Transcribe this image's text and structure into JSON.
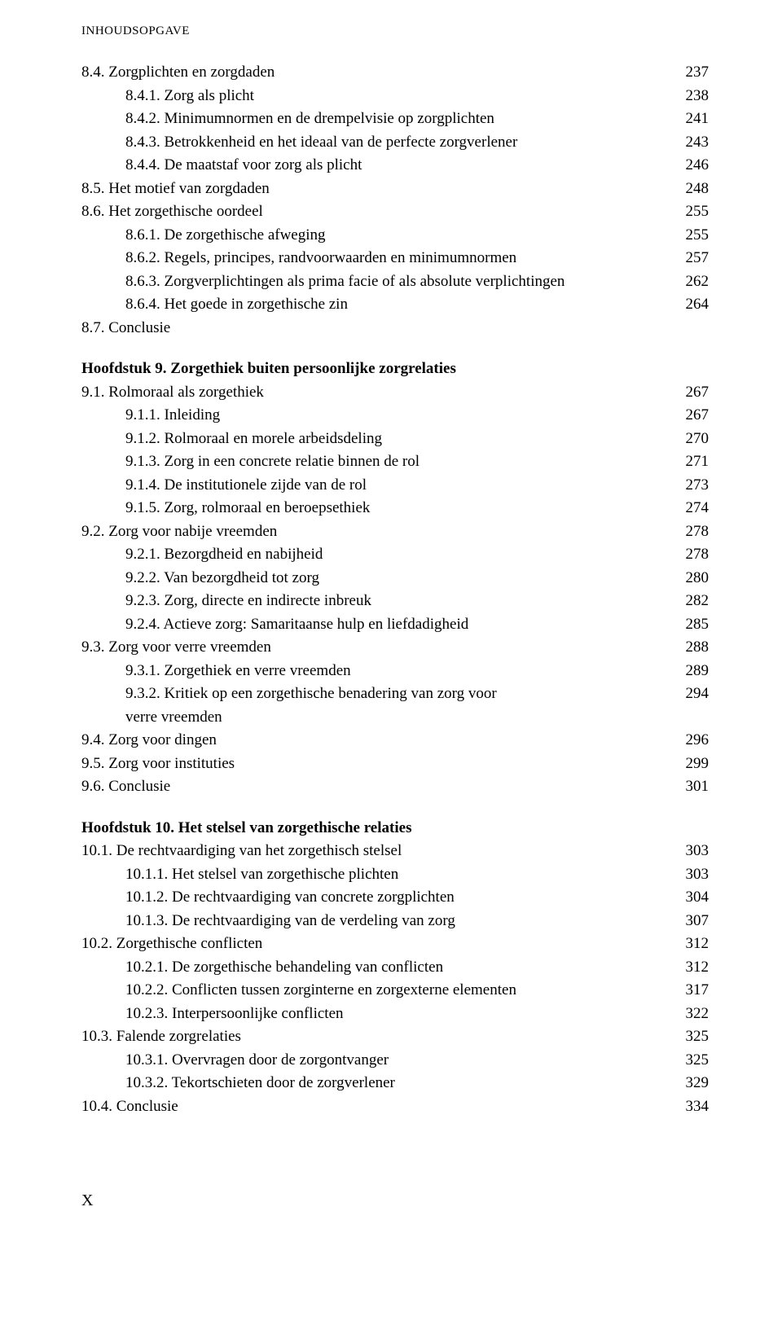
{
  "header": "INHOUDSOPGAVE",
  "footer": "X",
  "entries": [
    {
      "num": "8.4.",
      "text": "Zorgplichten en zorgdaden",
      "page": "237",
      "indent": 0
    },
    {
      "num": "8.4.1.",
      "text": "Zorg als plicht",
      "page": "238",
      "indent": 1
    },
    {
      "num": "8.4.2.",
      "text": "Minimumnormen en de drempelvisie op zorgplichten",
      "page": "241",
      "indent": 1
    },
    {
      "num": "8.4.3.",
      "text": "Betrokkenheid en het ideaal van de perfecte zorgverlener",
      "page": "243",
      "indent": 1
    },
    {
      "num": "8.4.4.",
      "text": "De maatstaf voor zorg als plicht",
      "page": "246",
      "indent": 1
    },
    {
      "num": "8.5.",
      "text": "Het motief van zorgdaden",
      "page": "248",
      "indent": 0
    },
    {
      "num": "8.6.",
      "text": "Het zorgethische oordeel",
      "page": "255",
      "indent": 0
    },
    {
      "num": "8.6.1.",
      "text": "De zorgethische afweging",
      "page": "255",
      "indent": 1
    },
    {
      "num": "8.6.2.",
      "text": "Regels, principes, randvoorwaarden en minimumnormen",
      "page": "257",
      "indent": 1
    },
    {
      "num": "8.6.3.",
      "text": "Zorgverplichtingen als prima facie of als absolute verplichtingen",
      "page": "262",
      "indent": 1
    },
    {
      "num": "8.6.4.",
      "text": "Het goede in zorgethische zin",
      "page": "264",
      "indent": 1
    },
    {
      "num": "8.7.",
      "text": "Conclusie",
      "page": "",
      "indent": 0
    },
    {
      "num": "",
      "text": "Hoofdstuk 9. Zorgethiek buiten persoonlijke zorgrelaties",
      "page": "",
      "indent": 0,
      "bold": true,
      "gap": true
    },
    {
      "num": "9.1.",
      "text": "Rolmoraal als zorgethiek",
      "page": "267",
      "indent": 0
    },
    {
      "num": "9.1.1.",
      "text": "Inleiding",
      "page": "267",
      "indent": 1
    },
    {
      "num": "9.1.2.",
      "text": "Rolmoraal en morele arbeidsdeling",
      "page": "270",
      "indent": 1
    },
    {
      "num": "9.1.3.",
      "text": "Zorg in een concrete relatie binnen de rol",
      "page": "271",
      "indent": 1
    },
    {
      "num": "9.1.4.",
      "text": "De institutionele zijde van de rol",
      "page": "273",
      "indent": 1
    },
    {
      "num": "9.1.5.",
      "text": "Zorg, rolmoraal en beroepsethiek",
      "page": "274",
      "indent": 1
    },
    {
      "num": "9.2.",
      "text": "Zorg voor nabije vreemden",
      "page": "278",
      "indent": 0
    },
    {
      "num": "9.2.1.",
      "text": "Bezorgdheid en nabijheid",
      "page": "278",
      "indent": 1
    },
    {
      "num": "9.2.2.",
      "text": "Van bezorgdheid tot zorg",
      "page": "280",
      "indent": 1
    },
    {
      "num": "9.2.3.",
      "text": "Zorg, directe en indirecte inbreuk",
      "page": "282",
      "indent": 1
    },
    {
      "num": "9.2.4.",
      "text": "Actieve zorg: Samaritaanse hulp en liefdadigheid",
      "page": "285",
      "indent": 1
    },
    {
      "num": "9.3.",
      "text": "Zorg voor verre vreemden",
      "page": "288",
      "indent": 0
    },
    {
      "num": "9.3.1.",
      "text": "Zorgethiek en verre vreemden",
      "page": "289",
      "indent": 1
    },
    {
      "num": "9.3.2.",
      "text": "Kritiek op een zorgethische benadering van zorg voor\nverre vreemden",
      "page": "294",
      "indent": 1
    },
    {
      "num": "9.4.",
      "text": "Zorg voor dingen",
      "page": "296",
      "indent": 0
    },
    {
      "num": "9.5.",
      "text": "Zorg voor instituties",
      "page": "299",
      "indent": 0
    },
    {
      "num": "9.6.",
      "text": "Conclusie",
      "page": "301",
      "indent": 0
    },
    {
      "num": "",
      "text": "Hoofdstuk 10. Het stelsel van zorgethische relaties",
      "page": "",
      "indent": 0,
      "bold": true,
      "gap": true
    },
    {
      "num": "10.1.",
      "text": "De rechtvaardiging van het zorgethisch stelsel",
      "page": "303",
      "indent": 0
    },
    {
      "num": "10.1.1.",
      "text": "Het stelsel van zorgethische plichten",
      "page": "303",
      "indent": 1
    },
    {
      "num": "10.1.2.",
      "text": "De rechtvaardiging van concrete zorgplichten",
      "page": "304",
      "indent": 1
    },
    {
      "num": "10.1.3.",
      "text": "De rechtvaardiging van de verdeling van zorg",
      "page": "307",
      "indent": 1
    },
    {
      "num": "10.2.",
      "text": "Zorgethische conflicten",
      "page": "312",
      "indent": 0
    },
    {
      "num": "10.2.1.",
      "text": "De zorgethische behandeling van conflicten",
      "page": "312",
      "indent": 1
    },
    {
      "num": "10.2.2.",
      "text": "Conflicten tussen zorginterne en zorgexterne elementen",
      "page": "317",
      "indent": 1
    },
    {
      "num": "10.2.3.",
      "text": "Interpersoonlijke conflicten",
      "page": "322",
      "indent": 1
    },
    {
      "num": "10.3.",
      "text": "Falende zorgrelaties",
      "page": "325",
      "indent": 0
    },
    {
      "num": "10.3.1.",
      "text": "Overvragen door de zorgontvanger",
      "page": "325",
      "indent": 1
    },
    {
      "num": "10.3.2.",
      "text": "Tekortschieten door de zorgverlener",
      "page": "329",
      "indent": 1
    },
    {
      "num": "10.4.",
      "text": "Conclusie",
      "page": "334",
      "indent": 0
    }
  ]
}
